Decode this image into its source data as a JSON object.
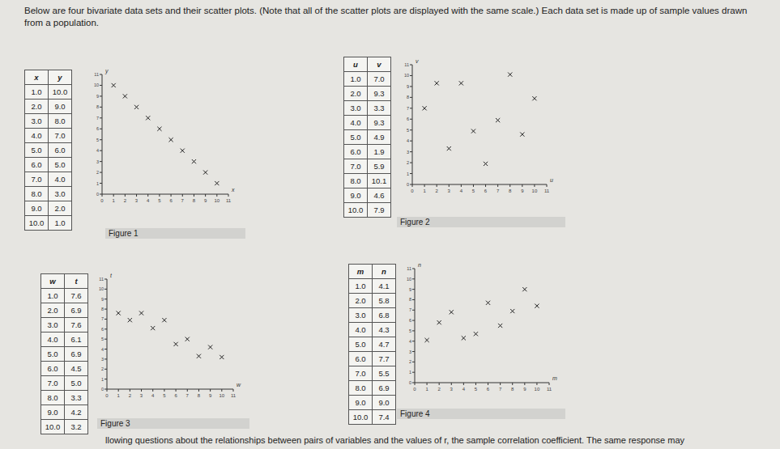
{
  "header": {
    "text": "Below are four bivariate data sets and their scatter plots. (Note that all of the scatter plots are displayed with the same scale.) Each data set is made up of sample values drawn from a population."
  },
  "footer": {
    "text": "llowing questions about the relationships between pairs of variables and the values of r, the sample correlation coefficient. The same response may"
  },
  "tables": [
    {
      "headers": [
        "x",
        "y"
      ],
      "rows": [
        [
          "1.0",
          "10.0"
        ],
        [
          "2.0",
          "9.0"
        ],
        [
          "3.0",
          "8.0"
        ],
        [
          "4.0",
          "7.0"
        ],
        [
          "5.0",
          "6.0"
        ],
        [
          "6.0",
          "5.0"
        ],
        [
          "7.0",
          "4.0"
        ],
        [
          "8.0",
          "3.0"
        ],
        [
          "9.0",
          "2.0"
        ],
        [
          "10.0",
          "1.0"
        ]
      ]
    },
    {
      "headers": [
        "u",
        "v"
      ],
      "rows": [
        [
          "1.0",
          "7.0"
        ],
        [
          "2.0",
          "9.3"
        ],
        [
          "3.0",
          "3.3"
        ],
        [
          "4.0",
          "9.3"
        ],
        [
          "5.0",
          "4.9"
        ],
        [
          "6.0",
          "1.9"
        ],
        [
          "7.0",
          "5.9"
        ],
        [
          "8.0",
          "10.1"
        ],
        [
          "9.0",
          "4.6"
        ],
        [
          "10.0",
          "7.9"
        ]
      ]
    },
    {
      "headers": [
        "w",
        "t"
      ],
      "rows": [
        [
          "1.0",
          "7.6"
        ],
        [
          "2.0",
          "6.9"
        ],
        [
          "3.0",
          "7.6"
        ],
        [
          "4.0",
          "6.1"
        ],
        [
          "5.0",
          "6.9"
        ],
        [
          "6.0",
          "4.5"
        ],
        [
          "7.0",
          "5.0"
        ],
        [
          "8.0",
          "3.3"
        ],
        [
          "9.0",
          "4.2"
        ],
        [
          "10.0",
          "3.2"
        ]
      ]
    },
    {
      "headers": [
        "m",
        "n"
      ],
      "rows": [
        [
          "1.0",
          "4.1"
        ],
        [
          "2.0",
          "5.8"
        ],
        [
          "3.0",
          "6.8"
        ],
        [
          "4.0",
          "4.3"
        ],
        [
          "5.0",
          "4.7"
        ],
        [
          "6.0",
          "7.7"
        ],
        [
          "7.0",
          "5.5"
        ],
        [
          "8.0",
          "6.9"
        ],
        [
          "9.0",
          "9.0"
        ],
        [
          "10.0",
          "7.4"
        ]
      ]
    }
  ],
  "chart_data": [
    {
      "type": "scatter",
      "title": "Figure 1",
      "x_label": "x",
      "y_label": "y",
      "marker": "x",
      "x": [
        1,
        2,
        3,
        4,
        5,
        6,
        7,
        8,
        9,
        10
      ],
      "values": [
        10,
        9,
        8,
        7,
        6,
        5,
        4,
        3,
        2,
        1
      ],
      "xlim": [
        0,
        11
      ],
      "xticks": [
        0,
        1,
        2,
        3,
        4,
        5,
        6,
        7,
        8,
        9,
        10,
        11
      ],
      "ylim": [
        0,
        11
      ],
      "yticks": [
        0,
        1,
        2,
        3,
        4,
        5,
        6,
        7,
        8,
        9,
        10,
        11
      ]
    },
    {
      "type": "scatter",
      "title": "Figure 2",
      "x_label": "u",
      "y_label": "v",
      "marker": "x",
      "x": [
        1,
        2,
        3,
        4,
        5,
        6,
        7,
        8,
        9,
        10
      ],
      "values": [
        7.0,
        9.3,
        3.3,
        9.3,
        4.9,
        1.9,
        5.9,
        10.1,
        4.6,
        7.9
      ],
      "xlim": [
        0,
        11
      ],
      "xticks": [
        0,
        1,
        2,
        3,
        4,
        5,
        6,
        7,
        8,
        9,
        10,
        11
      ],
      "ylim": [
        0,
        11
      ],
      "yticks": [
        0,
        1,
        2,
        3,
        4,
        5,
        6,
        7,
        8,
        9,
        10,
        11
      ]
    },
    {
      "type": "scatter",
      "title": "Figure 3",
      "x_label": "w",
      "y_label": "t",
      "marker": "x",
      "x": [
        1,
        2,
        3,
        4,
        5,
        6,
        7,
        8,
        9,
        10
      ],
      "values": [
        7.6,
        6.9,
        7.6,
        6.1,
        6.9,
        4.5,
        5.0,
        3.3,
        4.2,
        3.2
      ],
      "xlim": [
        0,
        11
      ],
      "xticks": [
        0,
        1,
        2,
        3,
        4,
        5,
        6,
        7,
        8,
        9,
        10,
        11
      ],
      "ylim": [
        0,
        11
      ],
      "yticks": [
        0,
        1,
        2,
        3,
        4,
        5,
        6,
        7,
        8,
        9,
        10,
        11
      ]
    },
    {
      "type": "scatter",
      "title": "Figure 4",
      "x_label": "m",
      "y_label": "n",
      "marker": "x",
      "x": [
        1,
        2,
        3,
        4,
        5,
        6,
        7,
        8,
        9,
        10
      ],
      "values": [
        4.1,
        5.8,
        6.8,
        4.3,
        4.7,
        7.7,
        5.5,
        6.9,
        9.0,
        7.4
      ],
      "xlim": [
        0,
        11
      ],
      "xticks": [
        0,
        1,
        2,
        3,
        4,
        5,
        6,
        7,
        8,
        9,
        10,
        11
      ],
      "ylim": [
        0,
        11
      ],
      "yticks": [
        0,
        1,
        2,
        3,
        4,
        5,
        6,
        7,
        8,
        9,
        10,
        11
      ]
    }
  ]
}
